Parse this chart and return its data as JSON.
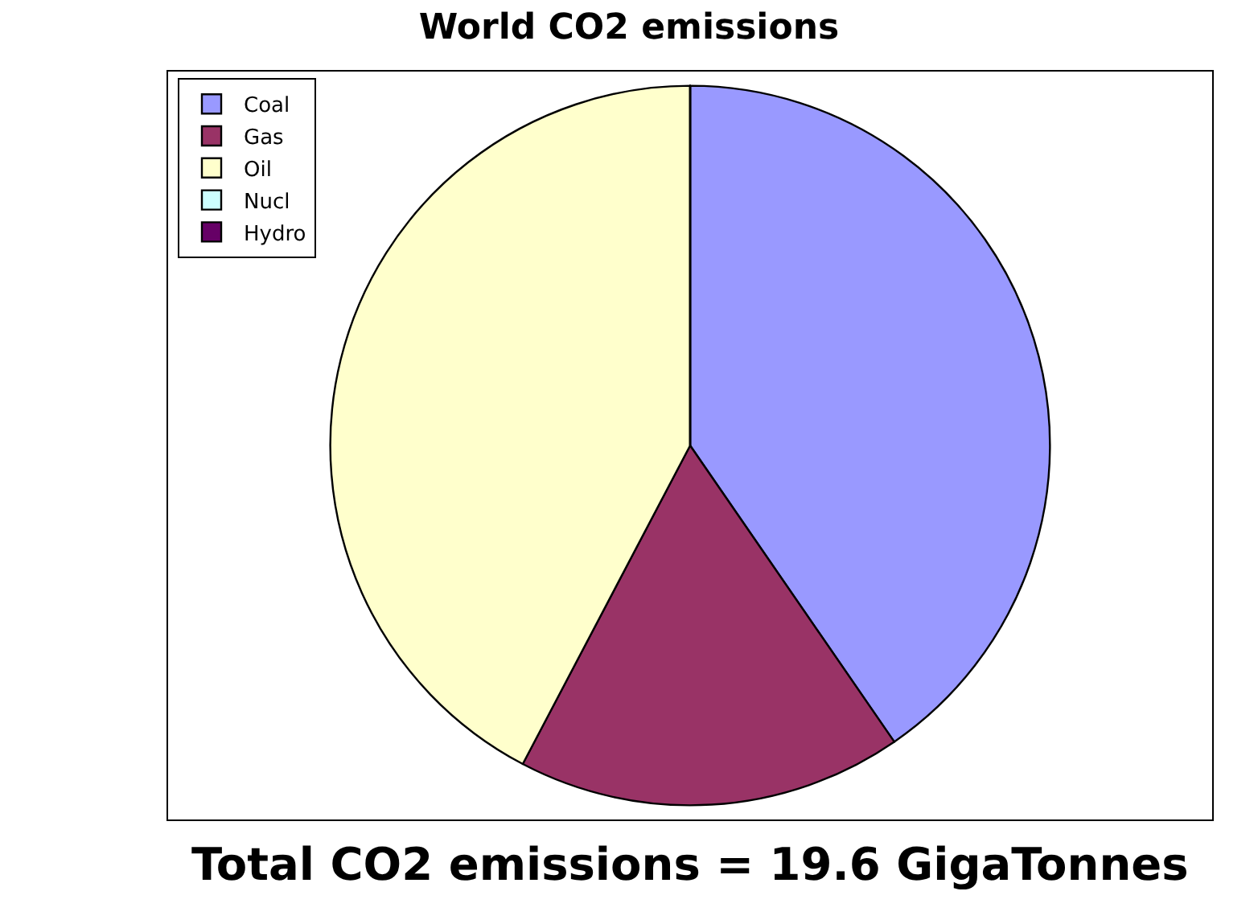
{
  "chart_data": {
    "type": "pie",
    "title": "World CO2 emissions",
    "categories": [
      "Coal",
      "Gas",
      "Oil",
      "Nucl",
      "Hydro"
    ],
    "values": [
      40.4,
      17.3,
      42.3,
      0,
      0
    ],
    "colors": [
      "#9999ff",
      "#993366",
      "#ffffcc",
      "#ccffff",
      "#660066"
    ],
    "legend": "top left",
    "annotations": [
      "Total CO2 emissions = 19.6 GigaTonnes"
    ]
  }
}
